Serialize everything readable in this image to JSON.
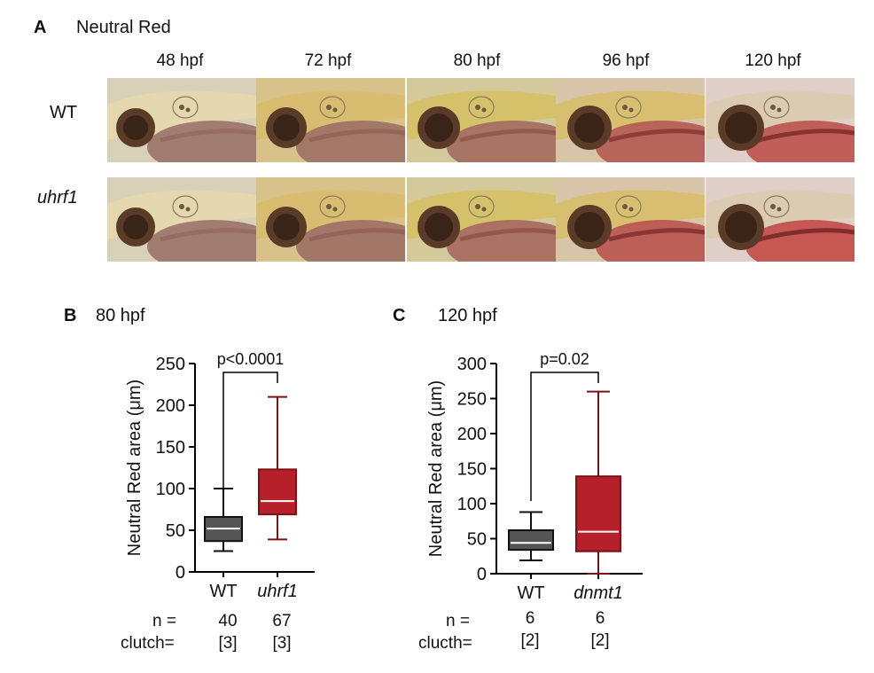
{
  "panel_a": {
    "letter": "A",
    "title": "Neutral Red",
    "columns": [
      "48 hpf",
      "72 hpf",
      "80 hpf",
      "96 hpf",
      "120 hpf"
    ],
    "rows": [
      {
        "label": "WT",
        "italic": false
      },
      {
        "label": "uhrf1",
        "italic": true
      }
    ]
  },
  "panel_b": {
    "letter": "B",
    "title": "80 hpf",
    "pvalue": "p<0.0001",
    "n_label": "n =",
    "clutch_label": "clutch=",
    "groups": [
      {
        "name": "WT",
        "italic": false,
        "n": "40",
        "clutch": "[3]"
      },
      {
        "name": "uhrf1",
        "italic": true,
        "n": "67",
        "clutch": "[3]"
      }
    ]
  },
  "panel_c": {
    "letter": "C",
    "title": "120 hpf",
    "pvalue": "p=0.02",
    "n_label": "n =",
    "clutch_label": "clucth=",
    "groups": [
      {
        "name": "WT",
        "italic": false,
        "n": "6",
        "clutch": "[2]"
      },
      {
        "name": "dnmt1",
        "italic": true,
        "n": "6",
        "clutch": "[2]"
      }
    ]
  },
  "chart_data": [
    {
      "type": "box",
      "title": "80 hpf",
      "ylabel": "Neutral Red area (μm)",
      "ylim": [
        0,
        250
      ],
      "yticks": [
        0,
        50,
        100,
        150,
        200,
        250
      ],
      "categories": [
        "WT",
        "uhrf1"
      ],
      "boxes": [
        {
          "name": "WT",
          "min": 25,
          "q1": 37,
          "median": 52,
          "q3": 66,
          "max": 100,
          "color": "#555555"
        },
        {
          "name": "uhrf1",
          "min": 39,
          "q1": 69,
          "median": 85,
          "q3": 123,
          "max": 210,
          "color": "#b5202a"
        }
      ],
      "annotation": "p<0.0001"
    },
    {
      "type": "box",
      "title": "120 hpf",
      "ylabel": "Neutral Red area (μm)",
      "ylim": [
        0,
        300
      ],
      "yticks": [
        0,
        50,
        100,
        150,
        200,
        250,
        300
      ],
      "categories": [
        "WT",
        "dnmt1"
      ],
      "boxes": [
        {
          "name": "WT",
          "min": 19,
          "q1": 34,
          "median": 44,
          "q3": 62,
          "max": 88,
          "color": "#555555"
        },
        {
          "name": "dnmt1",
          "min": 0,
          "q1": 32,
          "median": 60,
          "q3": 139,
          "max": 260,
          "color": "#b5202a"
        }
      ],
      "annotation": "p=0.02"
    }
  ]
}
